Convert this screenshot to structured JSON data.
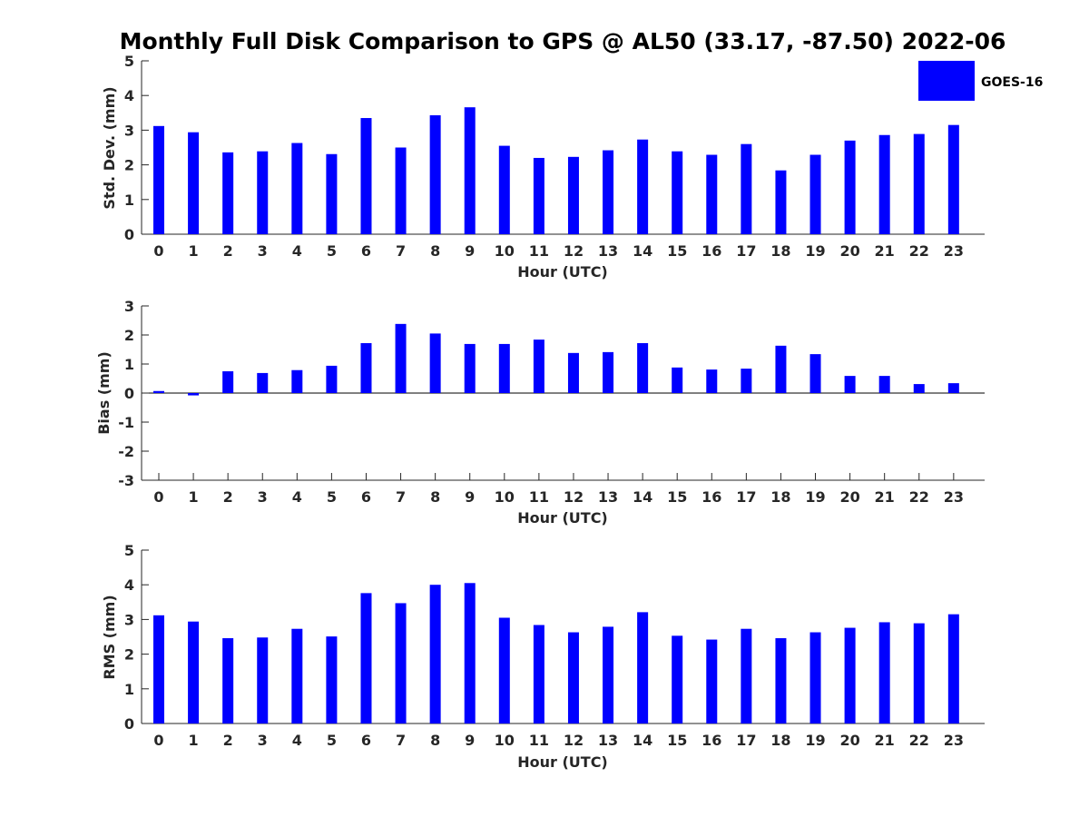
{
  "chart_data": {
    "type": "bar",
    "title": "Monthly Full Disk Comparison to GPS @ AL50 (33.17, -87.50) 2022-06",
    "legend": {
      "placement": "top-right",
      "entries": [
        "GOES-16"
      ]
    },
    "color": "#0000ff",
    "grid": false,
    "categories": [
      "0",
      "1",
      "2",
      "3",
      "4",
      "5",
      "6",
      "7",
      "8",
      "9",
      "10",
      "11",
      "12",
      "13",
      "14",
      "15",
      "16",
      "17",
      "18",
      "19",
      "20",
      "21",
      "22",
      "23"
    ],
    "subplots": [
      {
        "name": "std-dev",
        "ylabel": "Std. Dev. (mm)",
        "xlabel": "Hour (UTC)",
        "ylim": [
          0,
          5
        ],
        "yticks": [
          0,
          1,
          2,
          3,
          4,
          5
        ],
        "series": [
          {
            "name": "GOES-16",
            "values": [
              3.12,
              2.94,
              2.36,
              2.39,
              2.63,
              2.31,
              3.35,
              2.5,
              3.43,
              3.66,
              2.55,
              2.2,
              2.23,
              2.42,
              2.73,
              2.39,
              2.29,
              2.6,
              1.84,
              2.29,
              2.7,
              2.86,
              2.89,
              3.15
            ]
          }
        ]
      },
      {
        "name": "bias",
        "ylabel": "Bias (mm)",
        "xlabel": "Hour (UTC)",
        "ylim": [
          -3,
          3
        ],
        "yticks": [
          -3,
          -2,
          -1,
          0,
          1,
          2,
          3
        ],
        "series": [
          {
            "name": "GOES-16",
            "values": [
              0.07,
              -0.08,
              0.75,
              0.69,
              0.79,
              0.94,
              1.72,
              2.38,
              2.05,
              1.69,
              1.69,
              1.84,
              1.38,
              1.41,
              1.72,
              0.88,
              0.81,
              0.84,
              1.63,
              1.34,
              0.59,
              0.59,
              0.31,
              0.34
            ]
          }
        ]
      },
      {
        "name": "rms",
        "ylabel": "RMS (mm)",
        "xlabel": "Hour (UTC)",
        "ylim": [
          0,
          5
        ],
        "yticks": [
          0,
          1,
          2,
          3,
          4,
          5
        ],
        "series": [
          {
            "name": "GOES-16",
            "values": [
              3.12,
              2.94,
              2.46,
              2.48,
              2.73,
              2.51,
              3.76,
              3.47,
              4.0,
              4.05,
              3.05,
              2.84,
              2.63,
              2.79,
              3.21,
              2.53,
              2.42,
              2.73,
              2.46,
              2.63,
              2.76,
              2.92,
              2.89,
              3.15
            ]
          }
        ]
      }
    ]
  }
}
